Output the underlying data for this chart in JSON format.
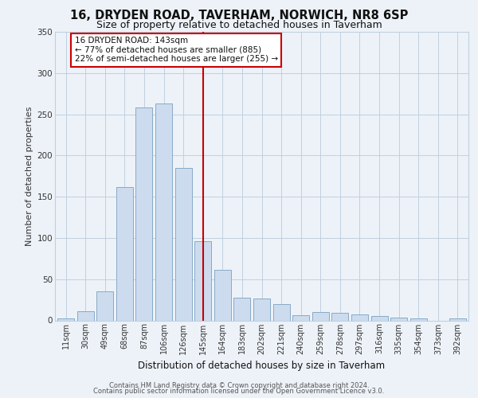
{
  "title": "16, DRYDEN ROAD, TAVERHAM, NORWICH, NR8 6SP",
  "subtitle": "Size of property relative to detached houses in Taverham",
  "xlabel": "Distribution of detached houses by size in Taverham",
  "ylabel": "Number of detached properties",
  "categories": [
    "11sqm",
    "30sqm",
    "49sqm",
    "68sqm",
    "87sqm",
    "106sqm",
    "126sqm",
    "145sqm",
    "164sqm",
    "183sqm",
    "202sqm",
    "221sqm",
    "240sqm",
    "259sqm",
    "278sqm",
    "297sqm",
    "316sqm",
    "335sqm",
    "354sqm",
    "373sqm",
    "392sqm"
  ],
  "values": [
    2,
    11,
    35,
    162,
    258,
    263,
    185,
    96,
    61,
    28,
    27,
    20,
    6,
    10,
    9,
    7,
    5,
    3,
    2,
    0,
    2
  ],
  "bar_color": "#ccdcee",
  "bar_edge_color": "#88aac8",
  "reference_line_color": "#cc0000",
  "annotation_text": "16 DRYDEN ROAD: 143sqm\n← 77% of detached houses are smaller (885)\n22% of semi-detached houses are larger (255) →",
  "annotation_box_facecolor": "#ffffff",
  "annotation_box_edgecolor": "#cc0000",
  "bg_color": "#edf2f8",
  "grid_color": "#c0cfe0",
  "footer_line1": "Contains HM Land Registry data © Crown copyright and database right 2024.",
  "footer_line2": "Contains public sector information licensed under the Open Government Licence v3.0.",
  "ylim": [
    0,
    350
  ],
  "yticks": [
    0,
    50,
    100,
    150,
    200,
    250,
    300,
    350
  ],
  "title_fontsize": 10.5,
  "subtitle_fontsize": 9,
  "axis_label_fontsize": 8,
  "tick_fontsize": 7,
  "footer_fontsize": 6,
  "annotation_fontsize": 7.5
}
